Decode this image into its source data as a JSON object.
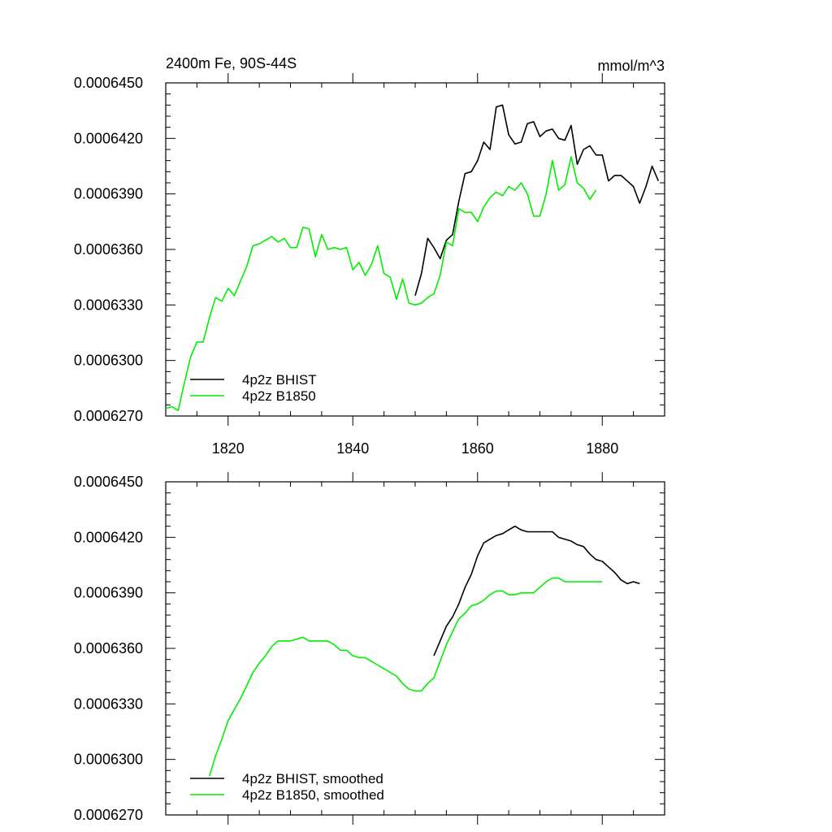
{
  "chart_data": [
    {
      "type": "line",
      "title_left": "2400m Fe, 90S-44S",
      "title_right": "mmol/m^3",
      "xlabel": "",
      "ylabel": "",
      "xlim": [
        1810,
        1890
      ],
      "ylim": [
        0.000627,
        0.000645
      ],
      "x_ticks": [
        1820,
        1840,
        1860,
        1880
      ],
      "x_tick_labels": [
        "1820",
        "1840",
        "1860",
        "1880"
      ],
      "y_ticks": [
        0.000627,
        0.00063,
        0.000633,
        0.000636,
        0.000639,
        0.000642,
        0.000645
      ],
      "y_tick_labels": [
        "0.0006270",
        "0.0006300",
        "0.0006330",
        "0.0006360",
        "0.0006390",
        "0.0006420",
        "0.0006450"
      ],
      "grid": false,
      "legend_position": "bottom-left",
      "series": [
        {
          "name": "4p2z BHIST",
          "color": "#000000",
          "x": [
            1850,
            1851,
            1852,
            1853,
            1854,
            1855,
            1856,
            1857,
            1858,
            1859,
            1860,
            1861,
            1862,
            1863,
            1864,
            1865,
            1866,
            1867,
            1868,
            1869,
            1870,
            1871,
            1872,
            1873,
            1874,
            1875,
            1876,
            1877,
            1878,
            1879,
            1880,
            1881,
            1882,
            1883,
            1884,
            1885,
            1886,
            1887,
            1888,
            1889
          ],
          "y": [
            0.0006335,
            0.0006347,
            0.0006366,
            0.0006361,
            0.0006355,
            0.0006365,
            0.0006368,
            0.0006386,
            0.0006401,
            0.0006402,
            0.0006408,
            0.0006418,
            0.0006414,
            0.0006437,
            0.0006438,
            0.0006422,
            0.0006417,
            0.0006418,
            0.0006428,
            0.0006429,
            0.0006421,
            0.0006424,
            0.0006425,
            0.000642,
            0.0006419,
            0.0006427,
            0.0006406,
            0.0006414,
            0.0006416,
            0.0006411,
            0.0006411,
            0.0006397,
            0.00064,
            0.00064,
            0.0006397,
            0.0006394,
            0.0006385,
            0.0006394,
            0.0006405,
            0.0006397
          ]
        },
        {
          "name": "4p2z B1850",
          "color": "#00ee00",
          "x": [
            1810,
            1811,
            1812,
            1813,
            1814,
            1815,
            1816,
            1817,
            1818,
            1819,
            1820,
            1821,
            1822,
            1823,
            1824,
            1825,
            1826,
            1827,
            1828,
            1829,
            1830,
            1831,
            1832,
            1833,
            1834,
            1835,
            1836,
            1837,
            1838,
            1839,
            1840,
            1841,
            1842,
            1843,
            1844,
            1845,
            1846,
            1847,
            1848,
            1849,
            1850,
            1851,
            1852,
            1853,
            1854,
            1855,
            1856,
            1857,
            1858,
            1859,
            1860,
            1861,
            1862,
            1863,
            1864,
            1865,
            1866,
            1867,
            1868,
            1869,
            1870,
            1871,
            1872,
            1873,
            1874,
            1875,
            1876,
            1877,
            1878,
            1879
          ],
          "y": [
            0.0006274,
            0.0006275,
            0.0006273,
            0.0006288,
            0.0006302,
            0.000631,
            0.000631,
            0.0006323,
            0.0006334,
            0.0006332,
            0.0006339,
            0.0006335,
            0.0006343,
            0.0006351,
            0.0006362,
            0.0006363,
            0.0006365,
            0.0006367,
            0.0006364,
            0.0006366,
            0.0006361,
            0.0006361,
            0.0006372,
            0.0006371,
            0.0006356,
            0.0006368,
            0.000636,
            0.0006361,
            0.000636,
            0.0006361,
            0.0006349,
            0.0006353,
            0.0006346,
            0.0006352,
            0.0006362,
            0.0006347,
            0.0006345,
            0.0006333,
            0.0006344,
            0.0006331,
            0.000633,
            0.0006331,
            0.0006334,
            0.0006336,
            0.0006346,
            0.0006364,
            0.0006362,
            0.0006382,
            0.000638,
            0.000638,
            0.0006375,
            0.0006383,
            0.0006388,
            0.0006391,
            0.0006389,
            0.0006394,
            0.0006392,
            0.0006396,
            0.000639,
            0.0006378,
            0.0006378,
            0.000639,
            0.0006408,
            0.0006392,
            0.0006395,
            0.000641,
            0.0006396,
            0.0006393,
            0.0006387,
            0.0006392
          ]
        }
      ]
    },
    {
      "type": "line",
      "title_left": "",
      "title_right": "",
      "xlabel": "",
      "ylabel": "",
      "xlim": [
        1810,
        1890
      ],
      "ylim": [
        0.000627,
        0.000645
      ],
      "x_ticks": [
        1820,
        1840,
        1860,
        1880
      ],
      "x_tick_labels": [],
      "y_ticks": [
        0.000627,
        0.00063,
        0.000633,
        0.000636,
        0.000639,
        0.000642,
        0.000645
      ],
      "y_tick_labels": [
        "0.0006270",
        "0.0006300",
        "0.0006330",
        "0.0006360",
        "0.0006390",
        "0.0006420",
        "0.0006450"
      ],
      "grid": false,
      "legend_position": "bottom-left",
      "series": [
        {
          "name": "4p2z BHIST, smoothed",
          "color": "#000000",
          "x": [
            1853,
            1854,
            1855,
            1856,
            1857,
            1858,
            1859,
            1860,
            1861,
            1862,
            1863,
            1864,
            1865,
            1866,
            1867,
            1868,
            1869,
            1870,
            1871,
            1872,
            1873,
            1874,
            1875,
            1876,
            1877,
            1878,
            1879,
            1880,
            1881,
            1882,
            1883,
            1884,
            1885,
            1886
          ],
          "y": [
            0.0006356,
            0.0006364,
            0.0006372,
            0.0006377,
            0.0006384,
            0.0006393,
            0.00064,
            0.000641,
            0.0006417,
            0.0006419,
            0.0006421,
            0.0006422,
            0.0006424,
            0.0006426,
            0.0006424,
            0.0006423,
            0.0006423,
            0.0006423,
            0.0006423,
            0.0006423,
            0.000642,
            0.0006419,
            0.0006418,
            0.0006416,
            0.0006415,
            0.0006411,
            0.0006408,
            0.0006407,
            0.0006404,
            0.0006401,
            0.0006397,
            0.0006395,
            0.0006396,
            0.0006395
          ]
        },
        {
          "name": "4p2z B1850, smoothed",
          "color": "#00ee00",
          "x": [
            1817,
            1818,
            1819,
            1820,
            1821,
            1822,
            1823,
            1824,
            1825,
            1826,
            1827,
            1828,
            1829,
            1830,
            1831,
            1832,
            1833,
            1834,
            1835,
            1836,
            1837,
            1838,
            1839,
            1840,
            1841,
            1842,
            1843,
            1844,
            1845,
            1846,
            1847,
            1848,
            1849,
            1850,
            1851,
            1852,
            1853,
            1854,
            1855,
            1856,
            1857,
            1858,
            1859,
            1860,
            1861,
            1862,
            1863,
            1864,
            1865,
            1866,
            1867,
            1868,
            1869,
            1870,
            1871,
            1872,
            1873,
            1874,
            1875,
            1876,
            1877,
            1878,
            1879,
            1880
          ],
          "y": [
            0.0006291,
            0.0006302,
            0.0006311,
            0.0006321,
            0.0006327,
            0.0006333,
            0.000634,
            0.0006347,
            0.0006352,
            0.0006356,
            0.0006361,
            0.0006364,
            0.0006364,
            0.0006364,
            0.0006365,
            0.0006366,
            0.0006364,
            0.0006364,
            0.0006364,
            0.0006364,
            0.0006362,
            0.0006359,
            0.0006359,
            0.0006356,
            0.0006355,
            0.0006355,
            0.0006353,
            0.0006351,
            0.0006349,
            0.0006347,
            0.0006345,
            0.0006341,
            0.0006338,
            0.0006337,
            0.0006337,
            0.0006341,
            0.0006344,
            0.0006353,
            0.0006362,
            0.0006369,
            0.0006376,
            0.0006379,
            0.0006383,
            0.0006384,
            0.0006386,
            0.0006389,
            0.0006391,
            0.0006391,
            0.0006389,
            0.0006389,
            0.000639,
            0.000639,
            0.000639,
            0.0006393,
            0.0006396,
            0.0006398,
            0.0006398,
            0.0006396,
            0.0006396,
            0.0006396,
            0.0006396,
            0.0006396,
            0.0006396,
            0.0006396
          ]
        }
      ]
    }
  ]
}
